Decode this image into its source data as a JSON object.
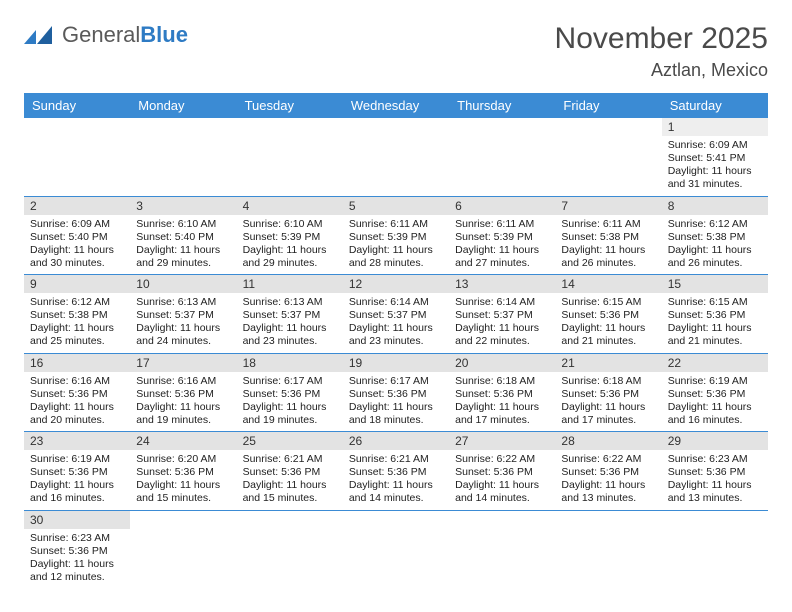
{
  "logo": {
    "text1": "General",
    "text2": "Blue"
  },
  "title": "November 2025",
  "location": "Aztlan, Mexico",
  "colors": {
    "header_bg": "#3b8bd4",
    "header_text": "#ffffff",
    "daynum_bg": "#e3e3e3",
    "border": "#3b8bd4",
    "logo_gray": "#5a5a5a",
    "logo_blue": "#2e7bc4"
  },
  "day_labels": [
    "Sunday",
    "Monday",
    "Tuesday",
    "Wednesday",
    "Thursday",
    "Friday",
    "Saturday"
  ],
  "first_weekday": 6,
  "days": [
    {
      "n": 1,
      "sr": "6:09 AM",
      "ss": "5:41 PM",
      "dh": 11,
      "dm": 31
    },
    {
      "n": 2,
      "sr": "6:09 AM",
      "ss": "5:40 PM",
      "dh": 11,
      "dm": 30
    },
    {
      "n": 3,
      "sr": "6:10 AM",
      "ss": "5:40 PM",
      "dh": 11,
      "dm": 29
    },
    {
      "n": 4,
      "sr": "6:10 AM",
      "ss": "5:39 PM",
      "dh": 11,
      "dm": 29
    },
    {
      "n": 5,
      "sr": "6:11 AM",
      "ss": "5:39 PM",
      "dh": 11,
      "dm": 28
    },
    {
      "n": 6,
      "sr": "6:11 AM",
      "ss": "5:39 PM",
      "dh": 11,
      "dm": 27
    },
    {
      "n": 7,
      "sr": "6:11 AM",
      "ss": "5:38 PM",
      "dh": 11,
      "dm": 26
    },
    {
      "n": 8,
      "sr": "6:12 AM",
      "ss": "5:38 PM",
      "dh": 11,
      "dm": 26
    },
    {
      "n": 9,
      "sr": "6:12 AM",
      "ss": "5:38 PM",
      "dh": 11,
      "dm": 25
    },
    {
      "n": 10,
      "sr": "6:13 AM",
      "ss": "5:37 PM",
      "dh": 11,
      "dm": 24
    },
    {
      "n": 11,
      "sr": "6:13 AM",
      "ss": "5:37 PM",
      "dh": 11,
      "dm": 23
    },
    {
      "n": 12,
      "sr": "6:14 AM",
      "ss": "5:37 PM",
      "dh": 11,
      "dm": 23
    },
    {
      "n": 13,
      "sr": "6:14 AM",
      "ss": "5:37 PM",
      "dh": 11,
      "dm": 22
    },
    {
      "n": 14,
      "sr": "6:15 AM",
      "ss": "5:36 PM",
      "dh": 11,
      "dm": 21
    },
    {
      "n": 15,
      "sr": "6:15 AM",
      "ss": "5:36 PM",
      "dh": 11,
      "dm": 21
    },
    {
      "n": 16,
      "sr": "6:16 AM",
      "ss": "5:36 PM",
      "dh": 11,
      "dm": 20
    },
    {
      "n": 17,
      "sr": "6:16 AM",
      "ss": "5:36 PM",
      "dh": 11,
      "dm": 19
    },
    {
      "n": 18,
      "sr": "6:17 AM",
      "ss": "5:36 PM",
      "dh": 11,
      "dm": 19
    },
    {
      "n": 19,
      "sr": "6:17 AM",
      "ss": "5:36 PM",
      "dh": 11,
      "dm": 18
    },
    {
      "n": 20,
      "sr": "6:18 AM",
      "ss": "5:36 PM",
      "dh": 11,
      "dm": 17
    },
    {
      "n": 21,
      "sr": "6:18 AM",
      "ss": "5:36 PM",
      "dh": 11,
      "dm": 17
    },
    {
      "n": 22,
      "sr": "6:19 AM",
      "ss": "5:36 PM",
      "dh": 11,
      "dm": 16
    },
    {
      "n": 23,
      "sr": "6:19 AM",
      "ss": "5:36 PM",
      "dh": 11,
      "dm": 16
    },
    {
      "n": 24,
      "sr": "6:20 AM",
      "ss": "5:36 PM",
      "dh": 11,
      "dm": 15
    },
    {
      "n": 25,
      "sr": "6:21 AM",
      "ss": "5:36 PM",
      "dh": 11,
      "dm": 15
    },
    {
      "n": 26,
      "sr": "6:21 AM",
      "ss": "5:36 PM",
      "dh": 11,
      "dm": 14
    },
    {
      "n": 27,
      "sr": "6:22 AM",
      "ss": "5:36 PM",
      "dh": 11,
      "dm": 14
    },
    {
      "n": 28,
      "sr": "6:22 AM",
      "ss": "5:36 PM",
      "dh": 11,
      "dm": 13
    },
    {
      "n": 29,
      "sr": "6:23 AM",
      "ss": "5:36 PM",
      "dh": 11,
      "dm": 13
    },
    {
      "n": 30,
      "sr": "6:23 AM",
      "ss": "5:36 PM",
      "dh": 11,
      "dm": 12
    }
  ],
  "labels": {
    "sunrise": "Sunrise:",
    "sunset": "Sunset:",
    "daylight_prefix": "Daylight:",
    "hours_word": "hours",
    "and_word": "and",
    "minutes_word": "minutes."
  }
}
